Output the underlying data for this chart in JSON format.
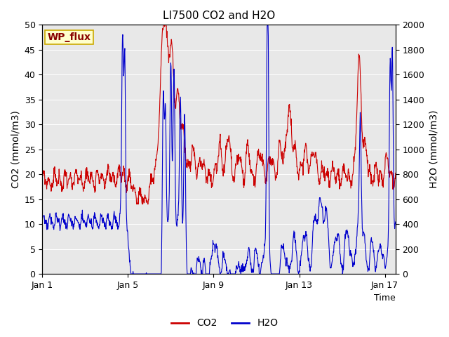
{
  "title": "LI7500 CO2 and H2O",
  "xlabel": "Time",
  "ylabel_left": "CO2 (mmol/m3)",
  "ylabel_right": "H2O (mmol/m3)",
  "annotation": "WP_flux",
  "xlim": [
    0,
    16.5
  ],
  "ylim_left": [
    0,
    50
  ],
  "ylim_right": [
    0,
    2000
  ],
  "xticks": [
    0,
    4,
    8,
    12,
    16
  ],
  "xtick_labels": [
    "Jan 1",
    "Jan 5",
    "Jan 9",
    "Jan 13",
    "Jan 17"
  ],
  "yticks_left": [
    0,
    5,
    10,
    15,
    20,
    25,
    30,
    35,
    40,
    45,
    50
  ],
  "yticks_right": [
    0,
    200,
    400,
    600,
    800,
    1000,
    1200,
    1400,
    1600,
    1800,
    2000
  ],
  "co2_color": "#cc0000",
  "h2o_color": "#0000cc",
  "bg_color": "#e8e8e8",
  "annotation_bg": "#ffffcc",
  "annotation_border": "#ccaa00",
  "annotation_text_color": "#880000",
  "legend_co2_label": "CO2",
  "legend_h2o_label": "H2O",
  "title_fontsize": 11,
  "axis_label_fontsize": 10,
  "tick_fontsize": 9,
  "annotation_fontsize": 10,
  "linewidth": 0.8
}
